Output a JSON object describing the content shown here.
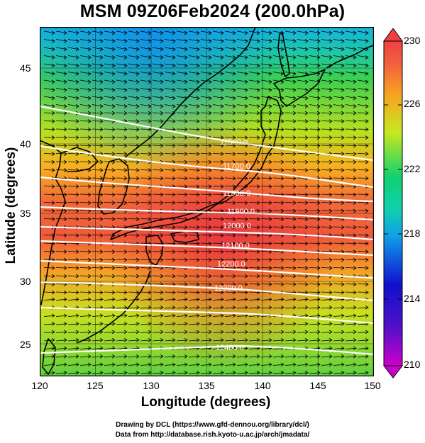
{
  "header": {
    "title": "MSM 09Z06Feb2024 (200.0hPa)"
  },
  "axes": {
    "xlabel": "Longitude (degrees)",
    "ylabel": "Latitude  (degrees)",
    "x_ticks": [
      "120",
      "125",
      "130",
      "135",
      "140",
      "145",
      "150"
    ],
    "y_ticks": [
      "25",
      "30",
      "35",
      "40",
      "45"
    ]
  },
  "colorbar": {
    "ticks": [
      "230",
      "226",
      "222",
      "218",
      "214",
      "210"
    ],
    "colors": [
      "#cc00cc",
      "#1010cc",
      "#10c8e8",
      "#10d070",
      "#c8e820",
      "#f88020",
      "#f04040"
    ]
  },
  "credits": {
    "line1": "Drawing by DCL (https://www.gfd-dennou.org/library/dcl/)",
    "line2": "Data from http://database.rish.kyoto-u.ac.jp/arch/jmadata/"
  },
  "map": {
    "lon_range": [
      120,
      150
    ],
    "lat_range": [
      22.5,
      48
    ],
    "contour_labels": [
      "11500.0",
      "11700.0",
      "11900.0",
      "11900.0",
      "12000.0",
      "12100.0",
      "12200.0",
      "12300.0",
      "12400.0"
    ],
    "grid_color": "#000000",
    "contour_color": "#ffffff"
  }
}
